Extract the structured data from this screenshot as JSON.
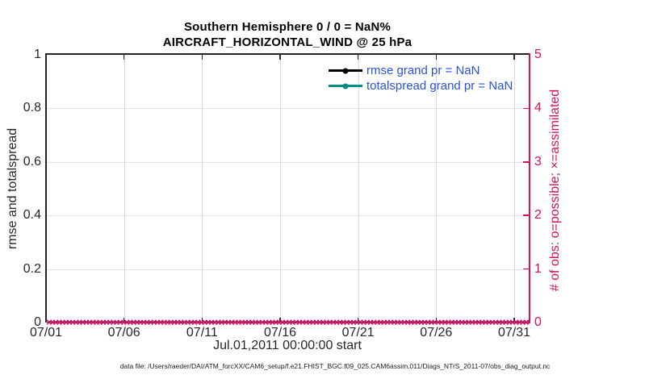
{
  "figure": {
    "title_line1": "Southern Hemisphere 0 / 0 = NaN%",
    "title_line2": "AIRCRAFT_HORIZONTAL_WIND @ 25 hPa",
    "footnote": "data file: /Users/raeder/DAI/ATM_forcXX/CAM6_setup/f.e21.FHIST_BGC.f09_025.CAM6assim.011/Diags_NTrS_2011-07/obs_diag_output.nc"
  },
  "chart_data": {
    "type": "line",
    "title": "Southern Hemisphere 0 / 0 = NaN%",
    "subtitle": "AIRCRAFT_HORIZONTAL_WIND @ 25 hPa",
    "xlabel": "Jul.01,2011 00:00:00 start",
    "x_tick_labels": [
      "07/01",
      "07/06",
      "07/11",
      "07/16",
      "07/21",
      "07/26",
      "07/31"
    ],
    "x_tick_days": [
      0,
      5,
      10,
      15,
      20,
      25,
      30
    ],
    "x_range_days": [
      0,
      30.93
    ],
    "left_axis": {
      "label": "rmse and totalspread",
      "ticks": [
        0,
        0.2,
        0.4,
        0.6,
        0.8,
        1
      ],
      "range": [
        0,
        1
      ],
      "color": "#262626"
    },
    "right_axis": {
      "label": "# of obs: o=possible; ×=assimilated",
      "ticks": [
        0,
        1,
        2,
        3,
        4,
        5
      ],
      "range": [
        0,
        5
      ],
      "color": "#d1135b"
    },
    "series": [
      {
        "name": "rmse grand pr = NaN",
        "color": "#000000",
        "marker": "circle",
        "values": []
      },
      {
        "name": "totalspread grand pr = NaN",
        "color": "#00917f",
        "marker": "circle",
        "values": []
      }
    ],
    "legend_text_color": "#2a52e0",
    "legend_position": "upper right inside, no box",
    "obs_markers": {
      "glyph": "×",
      "color": "#d4005f",
      "y_value": 0,
      "count": 160
    },
    "grid": {
      "vertical_color": "#dcdcdc",
      "horizontal_color": "#f5d9e4"
    }
  }
}
